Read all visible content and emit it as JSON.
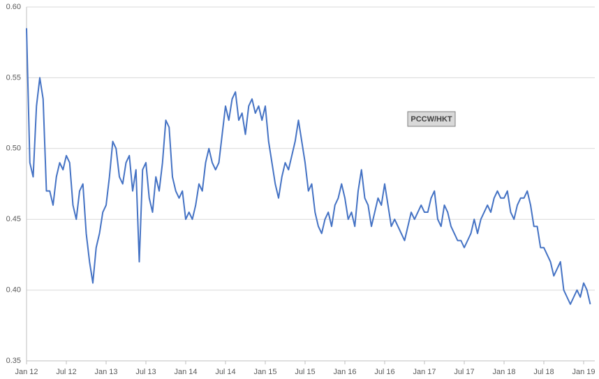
{
  "chart_data": {
    "type": "line",
    "annotation": "PCCW/HKT",
    "categories": [
      "Jan 12",
      null,
      null,
      null,
      null,
      null,
      null,
      null,
      null,
      null,
      null,
      null,
      "Jul 12",
      null,
      null,
      null,
      null,
      null,
      null,
      null,
      null,
      null,
      null,
      null,
      "Jan 13",
      null,
      null,
      null,
      null,
      null,
      null,
      null,
      null,
      null,
      null,
      null,
      "Jul 13",
      null,
      null,
      null,
      null,
      null,
      null,
      null,
      null,
      null,
      null,
      null,
      "Jan 14",
      null,
      null,
      null,
      null,
      null,
      null,
      null,
      null,
      null,
      null,
      null,
      "Jul 14",
      null,
      null,
      null,
      null,
      null,
      null,
      null,
      null,
      null,
      null,
      null,
      "Jan 15",
      null,
      null,
      null,
      null,
      null,
      null,
      null,
      null,
      null,
      null,
      null,
      "Jul 15",
      null,
      null,
      null,
      null,
      null,
      null,
      null,
      null,
      null,
      null,
      null,
      "Jan 16",
      null,
      null,
      null,
      null,
      null,
      null,
      null,
      null,
      null,
      null,
      null,
      "Jul 16",
      null,
      null,
      null,
      null,
      null,
      null,
      null,
      null,
      null,
      null,
      null,
      "Jan 17",
      null,
      null,
      null,
      null,
      null,
      null,
      null,
      null,
      null,
      null,
      null,
      "Jul 17",
      null,
      null,
      null,
      null,
      null,
      null,
      null,
      null,
      null,
      null,
      null,
      "Jan 18",
      null,
      null,
      null,
      null,
      null,
      null,
      null,
      null,
      null,
      null,
      null,
      "Jul 18",
      null,
      null,
      null,
      null,
      null,
      null,
      null,
      null,
      null,
      null,
      null,
      "Jan 19",
      null,
      null
    ],
    "series": [
      {
        "name": "PCCW/HKT",
        "color": "#4472c4",
        "values": [
          0.585,
          0.49,
          0.48,
          0.53,
          0.55,
          0.535,
          0.47,
          0.47,
          0.46,
          0.48,
          0.49,
          0.485,
          0.495,
          0.49,
          0.46,
          0.45,
          0.47,
          0.475,
          0.44,
          0.42,
          0.405,
          0.43,
          0.44,
          0.455,
          0.46,
          0.48,
          0.505,
          0.5,
          0.48,
          0.475,
          0.49,
          0.495,
          0.47,
          0.485,
          0.42,
          0.485,
          0.49,
          0.465,
          0.455,
          0.48,
          0.47,
          0.49,
          0.52,
          0.515,
          0.48,
          0.47,
          0.465,
          0.47,
          0.45,
          0.455,
          0.45,
          0.46,
          0.475,
          0.47,
          0.49,
          0.5,
          0.49,
          0.485,
          0.49,
          0.51,
          0.53,
          0.52,
          0.535,
          0.54,
          0.52,
          0.525,
          0.51,
          0.53,
          0.535,
          0.525,
          0.53,
          0.52,
          0.53,
          0.505,
          0.49,
          0.475,
          0.465,
          0.48,
          0.49,
          0.485,
          0.495,
          0.505,
          0.52,
          0.505,
          0.49,
          0.47,
          0.475,
          0.455,
          0.445,
          0.44,
          0.45,
          0.455,
          0.445,
          0.46,
          0.465,
          0.475,
          0.465,
          0.45,
          0.455,
          0.445,
          0.47,
          0.485,
          0.465,
          0.46,
          0.445,
          0.455,
          0.465,
          0.46,
          0.475,
          0.46,
          0.445,
          0.45,
          0.445,
          0.44,
          0.435,
          0.445,
          0.455,
          0.45,
          0.455,
          0.46,
          0.455,
          0.455,
          0.465,
          0.47,
          0.45,
          0.445,
          0.46,
          0.455,
          0.445,
          0.44,
          0.435,
          0.435,
          0.43,
          0.435,
          0.44,
          0.45,
          0.44,
          0.45,
          0.455,
          0.46,
          0.455,
          0.465,
          0.47,
          0.465,
          0.465,
          0.47,
          0.455,
          0.45,
          0.46,
          0.465,
          0.465,
          0.47,
          0.46,
          0.445,
          0.445,
          0.43,
          0.43,
          0.425,
          0.42,
          0.41,
          0.415,
          0.42,
          0.4,
          0.395,
          0.39,
          0.395,
          0.4,
          0.395,
          0.405,
          0.4,
          0.39
        ]
      }
    ],
    "ylim": [
      0.35,
      0.6
    ],
    "yticks": [
      {
        "value": 0.35,
        "label": "0.35"
      },
      {
        "value": 0.4,
        "label": "0.40"
      },
      {
        "value": 0.45,
        "label": "0.45"
      },
      {
        "value": 0.5,
        "label": "0.50"
      },
      {
        "value": 0.55,
        "label": "0.55"
      },
      {
        "value": 0.6,
        "label": "0.60"
      }
    ],
    "grid": true
  }
}
